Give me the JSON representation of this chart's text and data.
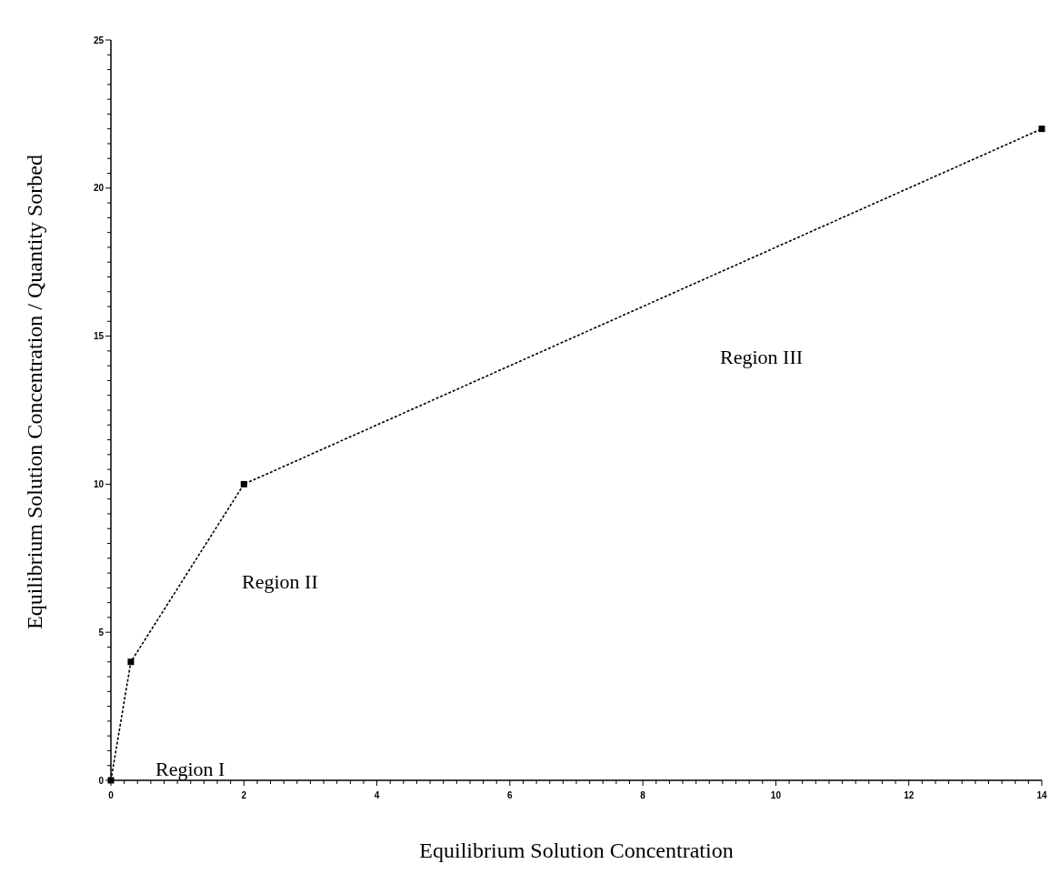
{
  "chart_data": {
    "type": "line",
    "xlabel": "Equilibrium Solution Concentration",
    "ylabel": "Equilibrium Solution Concentration / Quantity Sorbed",
    "x": [
      0,
      0.3,
      2,
      14
    ],
    "series": [
      {
        "color": "#000000",
        "values": [
          0,
          4,
          10,
          22
        ]
      }
    ],
    "marker": "square",
    "line_style": "dotted",
    "grid": false,
    "xlim": [
      0,
      14
    ],
    "ylim": [
      0,
      25
    ],
    "xticks": [
      0,
      {
        "value": 0.2,
        "label": null
      },
      {
        "value": 0.4,
        "label": null
      },
      {
        "value": 0.6,
        "label": null
      },
      {
        "value": 0.8,
        "label": null
      },
      {
        "value": 1,
        "label": null
      },
      {
        "value": 1.2,
        "label": null
      },
      {
        "value": 1.4,
        "label": null
      },
      {
        "value": 1.6,
        "label": null
      },
      {
        "value": 1.8,
        "label": null
      },
      2,
      {
        "value": 2.2,
        "label": null
      },
      {
        "value": 2.4,
        "label": null
      },
      {
        "value": 2.6,
        "label": null
      },
      {
        "value": 2.8,
        "label": null
      },
      {
        "value": 3,
        "label": null
      },
      {
        "value": 3.2,
        "label": null
      },
      {
        "value": 3.4,
        "label": null
      },
      {
        "value": 3.6,
        "label": null
      },
      {
        "value": 3.8,
        "label": null
      },
      4,
      {
        "value": 4.2,
        "label": null
      },
      {
        "value": 4.4,
        "label": null
      },
      {
        "value": 4.6,
        "label": null
      },
      {
        "value": 4.8,
        "label": null
      },
      {
        "value": 5,
        "label": null
      },
      {
        "value": 5.2,
        "label": null
      },
      {
        "value": 5.4,
        "label": null
      },
      {
        "value": 5.6,
        "label": null
      },
      {
        "value": 5.8,
        "label": null
      },
      6,
      {
        "value": 6.2,
        "label": null
      },
      {
        "value": 6.4,
        "label": null
      },
      {
        "value": 6.6,
        "label": null
      },
      {
        "value": 6.8,
        "label": null
      },
      {
        "value": 7,
        "label": null
      },
      {
        "value": 7.2,
        "label": null
      },
      {
        "value": 7.4,
        "label": null
      },
      {
        "value": 7.6,
        "label": null
      },
      {
        "value": 7.8,
        "label": null
      },
      8,
      {
        "value": 8.2,
        "label": null
      },
      {
        "value": 8.4,
        "label": null
      },
      {
        "value": 8.6,
        "label": null
      },
      {
        "value": 8.8,
        "label": null
      },
      {
        "value": 9,
        "label": null
      },
      {
        "value": 9.2,
        "label": null
      },
      {
        "value": 9.4,
        "label": null
      },
      {
        "value": 9.6,
        "label": null
      },
      {
        "value": 9.8,
        "label": null
      },
      10,
      {
        "value": 10.2,
        "label": null
      },
      {
        "value": 10.4,
        "label": null
      },
      {
        "value": 10.6,
        "label": null
      },
      {
        "value": 10.8,
        "label": null
      },
      {
        "value": 11,
        "label": null
      },
      {
        "value": 11.2,
        "label": null
      },
      {
        "value": 11.4,
        "label": null
      },
      {
        "value": 11.6,
        "label": null
      },
      {
        "value": 11.8,
        "label": null
      },
      12,
      {
        "value": 12.2,
        "label": null
      },
      {
        "value": 12.4,
        "label": null
      },
      {
        "value": 12.6,
        "label": null
      },
      {
        "value": 12.8,
        "label": null
      },
      {
        "value": 13,
        "label": null
      },
      {
        "value": 13.2,
        "label": null
      },
      {
        "value": 13.4,
        "label": null
      },
      {
        "value": 13.6,
        "label": null
      },
      {
        "value": 13.8,
        "label": null
      },
      14
    ],
    "yticks": [
      0,
      {
        "value": 0.5,
        "label": null
      },
      {
        "value": 1,
        "label": null
      },
      {
        "value": 1.5,
        "label": null
      },
      {
        "value": 2,
        "label": null
      },
      {
        "value": 2.5,
        "label": null
      },
      {
        "value": 3,
        "label": null
      },
      {
        "value": 3.5,
        "label": null
      },
      {
        "value": 4,
        "label": null
      },
      {
        "value": 4.5,
        "label": null
      },
      5,
      {
        "value": 5.5,
        "label": null
      },
      {
        "value": 6,
        "label": null
      },
      {
        "value": 6.5,
        "label": null
      },
      {
        "value": 7,
        "label": null
      },
      {
        "value": 7.5,
        "label": null
      },
      {
        "value": 8,
        "label": null
      },
      {
        "value": 8.5,
        "label": null
      },
      {
        "value": 9,
        "label": null
      },
      {
        "value": 9.5,
        "label": null
      },
      10,
      {
        "value": 10.5,
        "label": null
      },
      {
        "value": 11,
        "label": null
      },
      {
        "value": 11.5,
        "label": null
      },
      {
        "value": 12,
        "label": null
      },
      {
        "value": 12.5,
        "label": null
      },
      {
        "value": 13,
        "label": null
      },
      {
        "value": 13.5,
        "label": null
      },
      {
        "value": 14,
        "label": null
      },
      {
        "value": 14.5,
        "label": null
      },
      15,
      {
        "value": 15.5,
        "label": null
      },
      {
        "value": 16,
        "label": null
      },
      {
        "value": 16.5,
        "label": null
      },
      {
        "value": 17,
        "label": null
      },
      {
        "value": 17.5,
        "label": null
      },
      {
        "value": 18,
        "label": null
      },
      {
        "value": 18.5,
        "label": null
      },
      {
        "value": 19,
        "label": null
      },
      {
        "value": 19.5,
        "label": null
      },
      20,
      {
        "value": 20.5,
        "label": null
      },
      {
        "value": 21,
        "label": null
      },
      {
        "value": 21.5,
        "label": null
      },
      {
        "value": 22,
        "label": null
      },
      {
        "value": 22.5,
        "label": null
      },
      {
        "value": 23,
        "label": null
      },
      {
        "value": 23.5,
        "label": null
      },
      {
        "value": 24,
        "label": null
      },
      {
        "value": 24.5,
        "label": null
      },
      25
    ],
    "annotations": [
      "Region I",
      "Region II",
      "Region III"
    ]
  }
}
